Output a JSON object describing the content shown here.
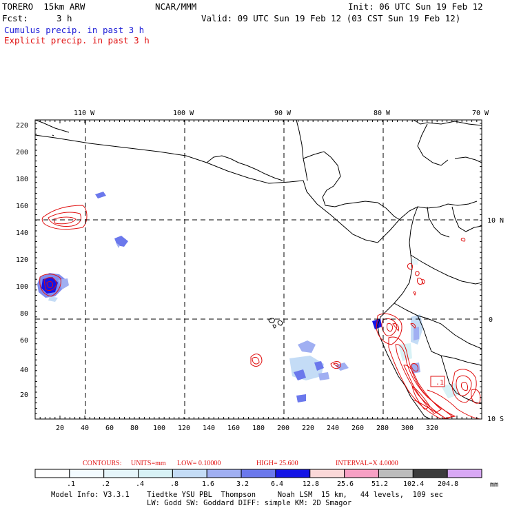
{
  "header": {
    "model": "TORERO  15km ARW",
    "org": "NCAR/MMM",
    "init": "Init: 06 UTC Sun 19 Feb 12",
    "fcst_label": "Fcst:",
    "fcst_value": "3 h",
    "valid": "Valid: 09 UTC Sun 19 Feb 12 (03 CST Sun 19 Feb 12)",
    "field1": "Cumulus precip. in past 3 h",
    "field2": "Explicit precip. in past 3 h"
  },
  "colors": {
    "cumulus": "#1a1ad6",
    "explicit": "#e01010",
    "coast": "#000000",
    "grid": "#000000"
  },
  "map": {
    "lon_labels": [
      "110 W",
      "100 W",
      "90 W",
      "80 W",
      "70 W"
    ],
    "lat_labels": [
      "10 N",
      "0",
      "10 S"
    ],
    "x_ticks": [
      "20",
      "40",
      "60",
      "80",
      "100",
      "120",
      "140",
      "160",
      "180",
      "200",
      "220",
      "240",
      "260",
      "280",
      "300",
      "320"
    ],
    "y_ticks": [
      "20",
      "40",
      "60",
      "80",
      "100",
      "120",
      "140",
      "160",
      "180",
      "200",
      "220"
    ],
    "contour_box_label": ".1"
  },
  "contours_line": {
    "contours": "CONTOURS:",
    "units": "UNITS=mm",
    "low": "LOW= 0.10000",
    "high": "HIGH= 25.600",
    "interval": "INTERVAL=X 4.0000"
  },
  "colorbar": {
    "labels": [
      ".1",
      ".2",
      ".4",
      ".8",
      "1.6",
      "3.2",
      "6.4",
      "12.8",
      "25.6",
      "51.2",
      "102.4",
      "204.8"
    ],
    "unit": "mm",
    "colors": [
      "#ffffff",
      "#f3fbff",
      "#e6f6fb",
      "#d8f2f6",
      "#c4dcf6",
      "#a0aff2",
      "#6b78ec",
      "#1414e6",
      "#fbd8d8",
      "#f7a0c4",
      "#bcbcbc",
      "#3c3c3c",
      "#d8a8f4"
    ]
  },
  "footer": {
    "line1": "Model Info: V3.3.1    Tiedtke YSU PBL  Thompson     Noah LSM  15 km,   44 levels,  109 sec",
    "line2": "LW: Godd SW: Goddard DIFF: simple KM: 2D Smagor"
  }
}
